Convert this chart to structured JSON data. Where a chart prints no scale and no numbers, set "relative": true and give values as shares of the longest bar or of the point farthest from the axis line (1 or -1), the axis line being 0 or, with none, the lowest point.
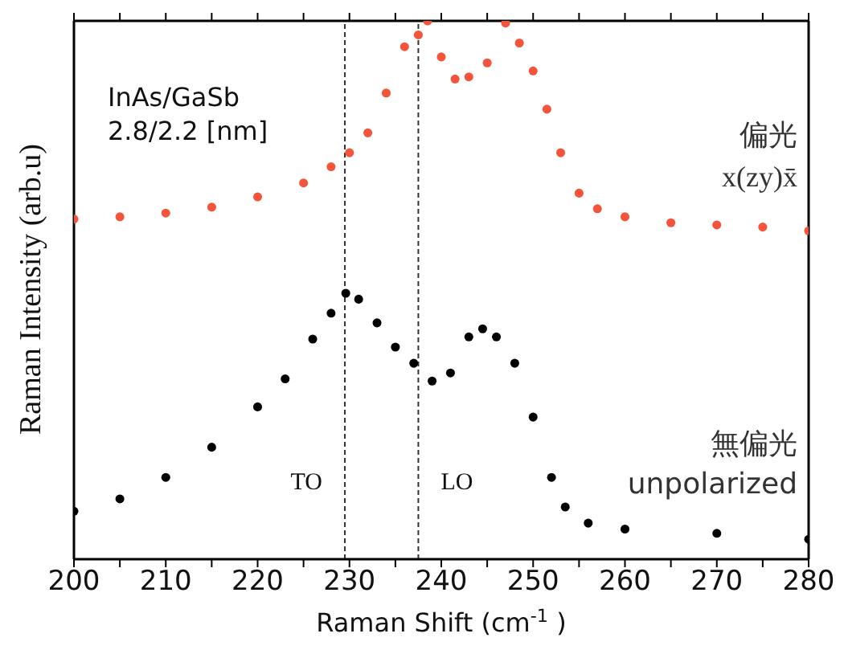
{
  "chart_data": {
    "type": "scatter",
    "relative": true,
    "xlabel": "Raman Shift (cm$^{-1}$)",
    "ylabel": "Raman Intensity (arb.u)",
    "annotations": [
      "InAs/GaSb",
      "2.8/2.2 [nm]"
    ],
    "xlim": [
      200,
      280
    ],
    "xticks": [
      200,
      {
        "value": 205,
        "label": null
      },
      210,
      {
        "value": 215,
        "label": null
      },
      220,
      {
        "value": 225,
        "label": null
      },
      230,
      {
        "value": 235,
        "label": null
      },
      240,
      {
        "value": 245,
        "label": null
      },
      250,
      {
        "value": 255,
        "label": null
      },
      260,
      {
        "value": 265,
        "label": null
      },
      270,
      {
        "value": 275,
        "label": null
      },
      280
    ],
    "grid": false,
    "legend": false,
    "marker": "circle",
    "ref_lines": [
      {
        "axis": "x",
        "value": 229.5,
        "label": "TO",
        "line_style": "dashed",
        "color": "#333333"
      },
      {
        "axis": "x",
        "value": 237.5,
        "label": "LO",
        "line_style": "dashed",
        "color": "#333333"
      }
    ],
    "series": [
      {
        "name": "偏光 x(zy)x̄",
        "color": "#f4553a",
        "x": [
          200,
          205,
          210,
          215,
          220,
          225,
          228,
          230,
          232,
          234,
          236,
          237.5,
          238.5,
          240,
          241.5,
          243,
          245,
          247,
          248.5,
          250,
          251.5,
          253,
          255,
          257,
          260,
          265,
          270,
          275,
          280
        ],
        "values": [
          0.632,
          0.636,
          0.643,
          0.654,
          0.673,
          0.699,
          0.729,
          0.755,
          0.792,
          0.866,
          0.952,
          0.974,
          1.0,
          0.933,
          0.892,
          0.896,
          0.922,
          0.996,
          0.959,
          0.907,
          0.836,
          0.755,
          0.68,
          0.651,
          0.636,
          0.625,
          0.621,
          0.617,
          0.61
        ]
      },
      {
        "name": "無偏光 unpolarized",
        "color": "#000000",
        "x": [
          200,
          205,
          210,
          215,
          220,
          223,
          226,
          228,
          229.6,
          231,
          233,
          235,
          237,
          239,
          241,
          243,
          244.5,
          246,
          248,
          250,
          252,
          253.5,
          256,
          260,
          270,
          280
        ],
        "values": [
          0.089,
          0.112,
          0.152,
          0.208,
          0.283,
          0.335,
          0.409,
          0.457,
          0.494,
          0.483,
          0.439,
          0.394,
          0.364,
          0.331,
          0.346,
          0.413,
          0.428,
          0.413,
          0.364,
          0.264,
          0.152,
          0.097,
          0.067,
          0.056,
          0.048,
          0.037
        ]
      }
    ]
  }
}
